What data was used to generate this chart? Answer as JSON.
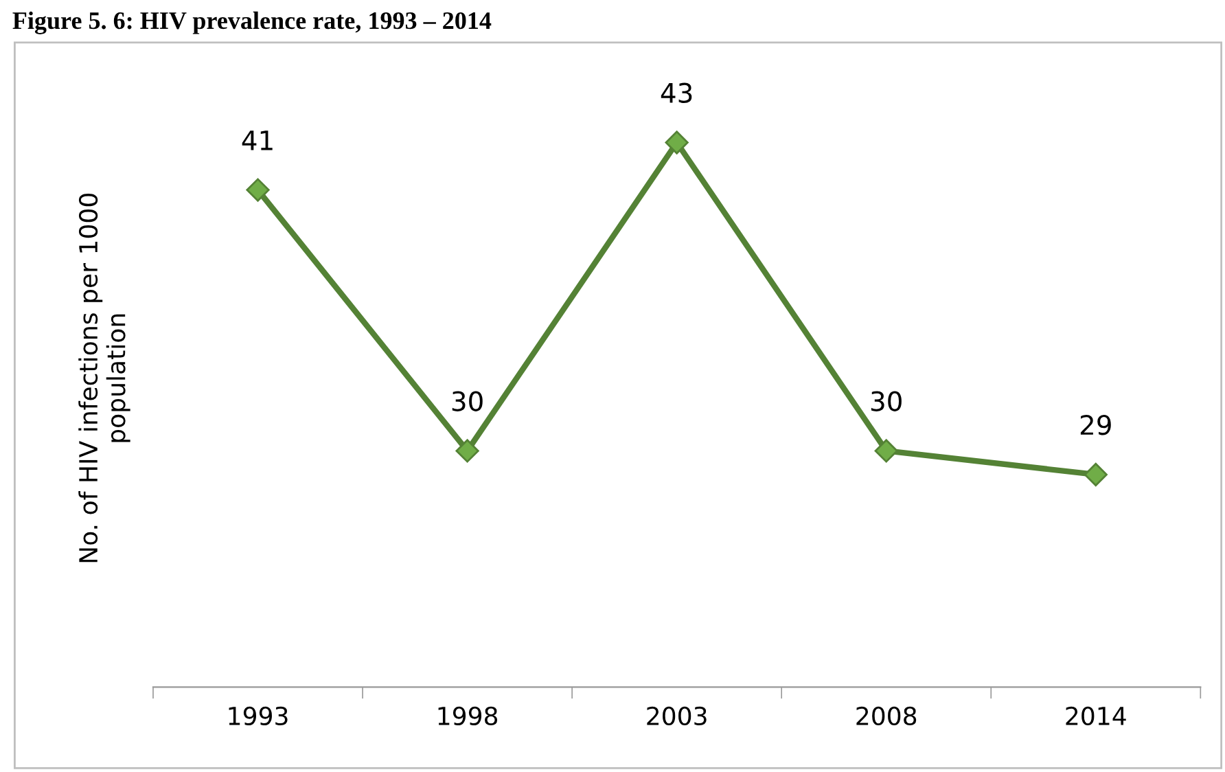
{
  "chart_data": {
    "type": "line",
    "title": "Figure 5. 6: HIV prevalence rate, 1993 – 2014",
    "ylabel": "No. of HIV infections per 1000\npopulation",
    "categories": [
      "1993",
      "1998",
      "2003",
      "2008",
      "2014"
    ],
    "series": [
      {
        "color": "#548235",
        "values": [
          41,
          30,
          43,
          30,
          29
        ]
      }
    ],
    "marker": "diamond",
    "data_labels": true,
    "grid": false,
    "legend": false
  }
}
